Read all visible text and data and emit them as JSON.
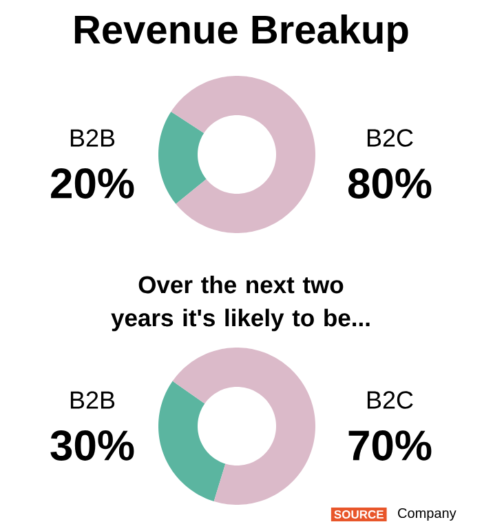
{
  "chart_data": [
    {
      "type": "donut",
      "title": "Revenue Breakup",
      "categories": [
        "B2B",
        "B2C"
      ],
      "values": [
        20,
        80
      ],
      "colors": [
        "#5bb5a0",
        "#dbbac9"
      ],
      "value_labels": [
        "20%",
        "80%"
      ]
    },
    {
      "type": "donut",
      "title": "Over the next two years it's likely to be...",
      "categories": [
        "B2B",
        "B2C"
      ],
      "values": [
        30,
        70
      ],
      "colors": [
        "#5bb5a0",
        "#dbbac9"
      ],
      "value_labels": [
        "30%",
        "70%"
      ],
      "annotations": [
        "SOURCE",
        "Company"
      ]
    }
  ]
}
